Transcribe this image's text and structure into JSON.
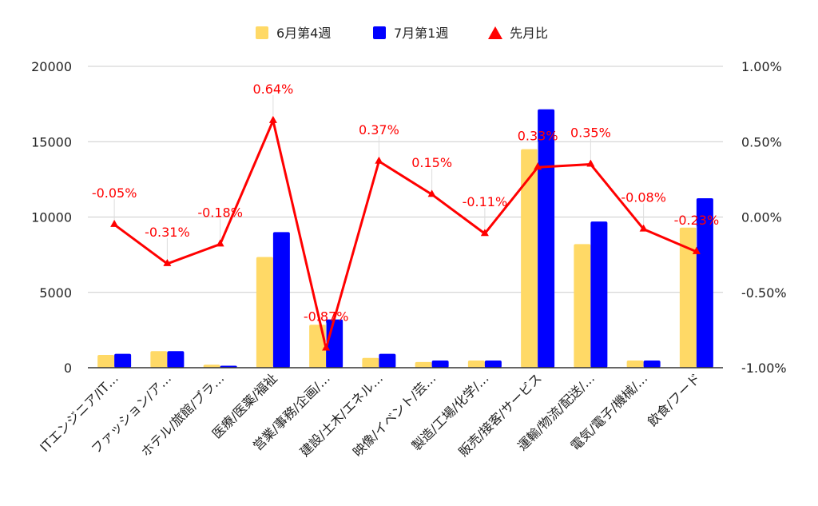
{
  "chart_data": {
    "type": "bar",
    "categories": [
      "ITエンジニア/IT…",
      "ファッション/ア…",
      "ホテル/旅館/ブラ…",
      "医療/医薬/福祉",
      "営業/事務/企画/…",
      "建設/土木/エネル…",
      "映像/イベント/芸…",
      "製造/工場/化学/…",
      "販売/接客/サービス",
      "運輸/物流/配送/…",
      "電気/電子/機械/…",
      "飲食/フード"
    ],
    "series": [
      {
        "name": "6月第4週",
        "type": "bar",
        "axis": "left",
        "color": "#FFD966",
        "values": [
          850,
          1100,
          200,
          7350,
          2850,
          650,
          380,
          480,
          14500,
          8200,
          480,
          9300
        ]
      },
      {
        "name": "7月第1週",
        "type": "bar",
        "axis": "left",
        "color": "#0000FF",
        "values": [
          920,
          1100,
          130,
          9000,
          3200,
          920,
          480,
          480,
          17150,
          9700,
          480,
          11250
        ]
      },
      {
        "name": "先月比",
        "type": "line",
        "axis": "right",
        "color": "#FF0000",
        "marker": "triangle",
        "values": [
          -0.05,
          -0.31,
          -0.18,
          0.64,
          -0.87,
          0.37,
          0.15,
          -0.11,
          0.33,
          0.35,
          -0.08,
          -0.23
        ],
        "labels": [
          "-0.05%",
          "-0.31%",
          "-0.18%",
          "0.64%",
          "-0.87%",
          "0.37%",
          "0.15%",
          "-0.11%",
          "0.33%",
          "0.35%",
          "-0.08%",
          "-0.23%"
        ]
      }
    ],
    "left_axis": {
      "ylim": [
        0,
        20000
      ],
      "ticks": [
        0,
        5000,
        10000,
        15000,
        20000
      ],
      "tick_labels": [
        "0",
        "5000",
        "10000",
        "15000",
        "20000"
      ]
    },
    "right_axis": {
      "ylim": [
        -1.0,
        1.0
      ],
      "ticks": [
        -1.0,
        -0.5,
        0.0,
        0.5,
        1.0
      ],
      "tick_labels": [
        "-1.00%",
        "-0.50%",
        "0.00%",
        "0.50%",
        "1.00%"
      ]
    },
    "grid": true,
    "legend_position": "top-center",
    "title": "",
    "xlabel": "",
    "ylabel": ""
  }
}
